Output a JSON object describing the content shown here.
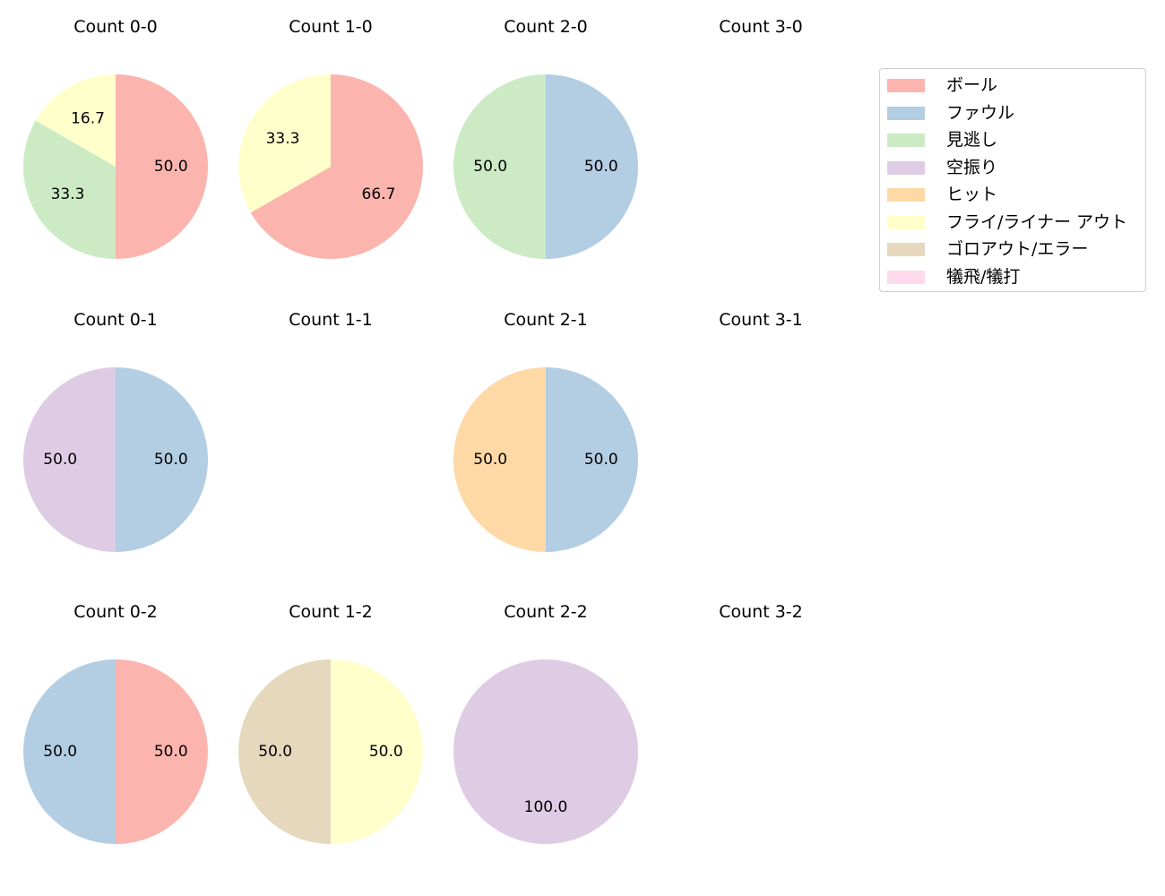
{
  "chart_data": {
    "type": "pie",
    "legend": {
      "placement": "top-right",
      "entries": [
        {
          "name": "ボール",
          "color": "#fbb4ae"
        },
        {
          "name": "ファウル",
          "color": "#b3cde3"
        },
        {
          "name": "見逃し",
          "color": "#ccebc5"
        },
        {
          "name": "空振り",
          "color": "#decbe4"
        },
        {
          "name": "ヒット",
          "color": "#fed9a6"
        },
        {
          "name": "フライ/ライナー アウト",
          "color": "#ffffcc"
        },
        {
          "name": "ゴロアウト/エラー",
          "color": "#e5d8bd"
        },
        {
          "name": "犠飛/犠打",
          "color": "#fddaec"
        }
      ]
    },
    "panels": [
      {
        "title": "Count 0-0",
        "slices": [
          {
            "category": "ボール",
            "value": 50.0,
            "label": "50.0"
          },
          {
            "category": "見逃し",
            "value": 33.3,
            "label": "33.3"
          },
          {
            "category": "フライ/ライナー アウト",
            "value": 16.7,
            "label": "16.7"
          }
        ]
      },
      {
        "title": "Count 1-0",
        "slices": [
          {
            "category": "ボール",
            "value": 66.7,
            "label": "66.7"
          },
          {
            "category": "フライ/ライナー アウト",
            "value": 33.3,
            "label": "33.3"
          }
        ]
      },
      {
        "title": "Count 2-0",
        "slices": [
          {
            "category": "ファウル",
            "value": 50.0,
            "label": "50.0"
          },
          {
            "category": "見逃し",
            "value": 50.0,
            "label": "50.0"
          }
        ]
      },
      {
        "title": "Count 3-0",
        "slices": []
      },
      {
        "title": "Count 0-1",
        "slices": [
          {
            "category": "ファウル",
            "value": 50.0,
            "label": "50.0"
          },
          {
            "category": "空振り",
            "value": 50.0,
            "label": "50.0"
          }
        ]
      },
      {
        "title": "Count 1-1",
        "slices": []
      },
      {
        "title": "Count 2-1",
        "slices": [
          {
            "category": "ファウル",
            "value": 50.0,
            "label": "50.0"
          },
          {
            "category": "ヒット",
            "value": 50.0,
            "label": "50.0"
          }
        ]
      },
      {
        "title": "Count 3-1",
        "slices": []
      },
      {
        "title": "Count 0-2",
        "slices": [
          {
            "category": "ボール",
            "value": 50.0,
            "label": "50.0"
          },
          {
            "category": "ファウル",
            "value": 50.0,
            "label": "50.0"
          }
        ]
      },
      {
        "title": "Count 1-2",
        "slices": [
          {
            "category": "フライ/ライナー アウト",
            "value": 50.0,
            "label": "50.0"
          },
          {
            "category": "ゴロアウト/エラー",
            "value": 50.0,
            "label": "50.0"
          }
        ]
      },
      {
        "title": "Count 2-2",
        "slices": [
          {
            "category": "空振り",
            "value": 100.0,
            "label": "100.0"
          }
        ]
      },
      {
        "title": "Count 3-2",
        "slices": []
      }
    ]
  }
}
